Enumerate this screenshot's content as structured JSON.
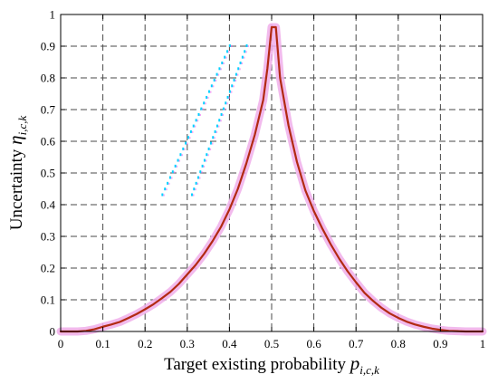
{
  "chart_data": {
    "type": "line",
    "title": "",
    "xlabel": {
      "text": "Target existing probability ",
      "symbol": "p",
      "subscript": "i,c,k"
    },
    "ylabel": {
      "text": "Uncertainty ",
      "symbol": "η",
      "subscript": "i,c,k"
    },
    "xlim": [
      0,
      1
    ],
    "ylim": [
      0,
      1
    ],
    "xticks": [
      0,
      0.1,
      0.2,
      0.3,
      0.4,
      0.5,
      0.6,
      0.7,
      0.8,
      0.9,
      1
    ],
    "xtick_labels": [
      "0",
      "0.1",
      "0.2",
      "0.3",
      "0.4",
      "0.5",
      "0.6",
      "0.7",
      "0.8",
      "0.9",
      "1"
    ],
    "yticks": [
      0,
      0.1,
      0.2,
      0.3,
      0.4,
      0.5,
      0.6,
      0.7,
      0.8,
      0.9,
      1
    ],
    "ytick_labels": [
      "0",
      "0.1",
      "0.2",
      "0.3",
      "0.4",
      "0.5",
      "0.6",
      "0.7",
      "0.8",
      "0.9",
      "1"
    ],
    "grid": true,
    "legend": "none",
    "series": [
      {
        "color": "#b22a12",
        "halo_color": "#f0aeea",
        "x": [
          0,
          0.02,
          0.04,
          0.06,
          0.08,
          0.1,
          0.12,
          0.14,
          0.16,
          0.18,
          0.2,
          0.22,
          0.24,
          0.26,
          0.28,
          0.3,
          0.32,
          0.34,
          0.36,
          0.38,
          0.4,
          0.42,
          0.44,
          0.46,
          0.48,
          0.49,
          0.5,
          0.51,
          0.52,
          0.54,
          0.56,
          0.58,
          0.6,
          0.62,
          0.64,
          0.66,
          0.68,
          0.7,
          0.72,
          0.74,
          0.76,
          0.78,
          0.8,
          0.82,
          0.84,
          0.86,
          0.88,
          0.9,
          0.92,
          0.94,
          0.96,
          0.98,
          1
        ],
        "y": [
          0,
          0,
          0,
          0.002,
          0.007,
          0.015,
          0.022,
          0.03,
          0.042,
          0.055,
          0.07,
          0.086,
          0.105,
          0.125,
          0.15,
          0.18,
          0.21,
          0.245,
          0.285,
          0.33,
          0.385,
          0.45,
          0.53,
          0.62,
          0.73,
          0.83,
          0.96,
          0.96,
          0.8,
          0.65,
          0.535,
          0.445,
          0.38,
          0.325,
          0.275,
          0.23,
          0.19,
          0.155,
          0.122,
          0.097,
          0.075,
          0.057,
          0.043,
          0.031,
          0.022,
          0.015,
          0.009,
          0.005,
          0.002,
          0.001,
          0,
          0,
          0
        ]
      }
    ],
    "annotations": {
      "dotted_marks": {
        "color_primary": "#00d0ff",
        "color_secondary": "#f060f0",
        "strands": [
          {
            "x": [
              0.24,
              0.4
            ],
            "y": [
              0.43,
              0.9
            ]
          },
          {
            "x": [
              0.31,
              0.44
            ],
            "y": [
              0.43,
              0.9
            ]
          }
        ]
      }
    }
  }
}
